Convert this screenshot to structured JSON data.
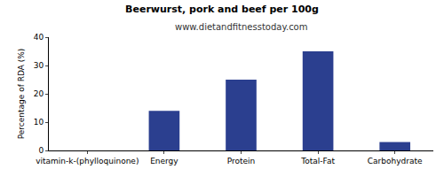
{
  "chart_data": {
    "type": "bar",
    "title": "Beerwurst, pork and beef per 100g",
    "subtitle": "www.dietandfitnesstoday.com",
    "y_label": "Percentage of RDA (%)",
    "categories": [
      "vitamin-k-(phylloquinone)",
      "Energy",
      "Protein",
      "Total-Fat",
      "Carbohydrate"
    ],
    "values": [
      0,
      14,
      25,
      35,
      3
    ],
    "color": "#2b3f8f",
    "ylim": [
      0,
      40
    ],
    "yticks": [
      0,
      10,
      20,
      30,
      40
    ],
    "grid": false
  }
}
